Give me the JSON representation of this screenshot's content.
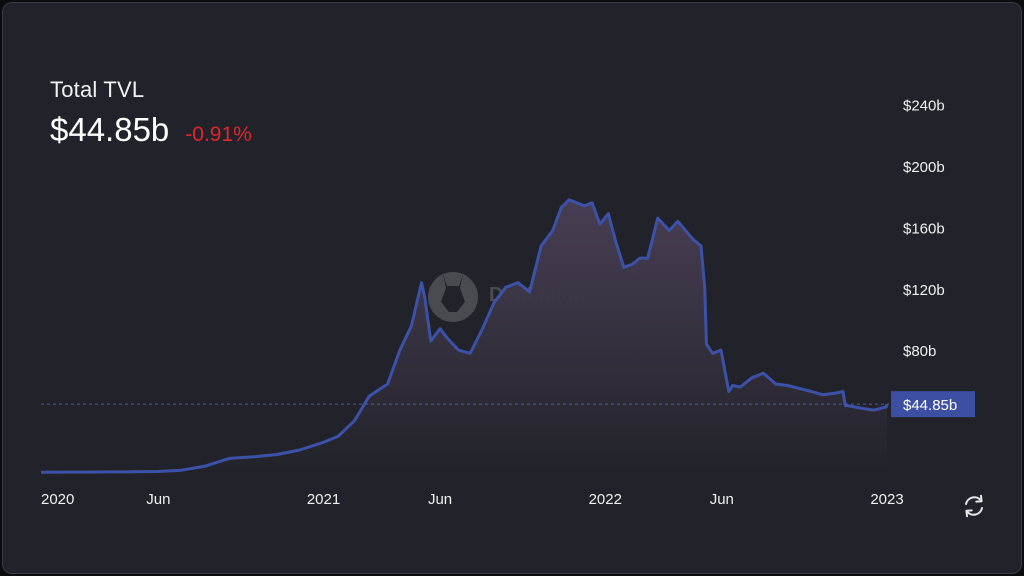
{
  "header": {
    "title": "Total TVL",
    "value": "$44.85b",
    "change": "-0.91%"
  },
  "watermark": {
    "text": "DefiLlama",
    "icon": "llama-logo-icon"
  },
  "controls": {
    "refresh_icon": "refresh-icon"
  },
  "colors": {
    "background": "#22232a",
    "line": "#3c52a8",
    "area_top": "#4a3f55",
    "change_negative": "#e0262c",
    "current_marker": "#3c4fa3"
  },
  "chart_data": {
    "type": "area",
    "series": [
      {
        "x": [
          "2020-01-01",
          "2020-02-01",
          "2020-03-01",
          "2020-04-01",
          "2020-05-01",
          "2020-06-01",
          "2020-07-01",
          "2020-08-01",
          "2020-09-01",
          "2020-10-01",
          "2020-11-01",
          "2020-12-01",
          "2021-01-01",
          "2021-01-20",
          "2021-02-10",
          "2021-03-01",
          "2021-03-25",
          "2021-04-10",
          "2021-04-25",
          "2021-05-08",
          "2021-05-12",
          "2021-05-20",
          "2021-06-01",
          "2021-06-10",
          "2021-06-25",
          "2021-07-10",
          "2021-07-25",
          "2021-08-10",
          "2021-08-25",
          "2021-09-10",
          "2021-09-25",
          "2021-10-10",
          "2021-10-25",
          "2021-11-05",
          "2021-11-15",
          "2021-11-25",
          "2021-12-05",
          "2021-12-15",
          "2021-12-25",
          "2022-01-05",
          "2022-01-15",
          "2022-01-25",
          "2022-02-05",
          "2022-02-15",
          "2022-02-25",
          "2022-03-10",
          "2022-03-25",
          "2022-04-05",
          "2022-04-15",
          "2022-04-25",
          "2022-05-05",
          "2022-05-10",
          "2022-05-12",
          "2022-05-20",
          "2022-05-31",
          "2022-06-10",
          "2022-06-15",
          "2022-06-25",
          "2022-07-10",
          "2022-07-25",
          "2022-08-10",
          "2022-08-25",
          "2022-09-10",
          "2022-09-25",
          "2022-10-10",
          "2022-10-25",
          "2022-11-05",
          "2022-11-08",
          "2022-11-10",
          "2022-11-20",
          "2022-12-01",
          "2022-12-15",
          "2022-12-31",
          "2023-01-01"
        ],
        "y": [
          0.5,
          0.6,
          0.6,
          0.7,
          0.8,
          1.0,
          1.8,
          4.5,
          9.5,
          10.5,
          12,
          15,
          20,
          24,
          34,
          50,
          58,
          80,
          96,
          124,
          115,
          86,
          94,
          88,
          80,
          78,
          93,
          111,
          121,
          124,
          118,
          148,
          158,
          173,
          178,
          176,
          174,
          176,
          162,
          169,
          150,
          134,
          136,
          140,
          140,
          166,
          158,
          164,
          158,
          152,
          148,
          120,
          84,
          78,
          80,
          53,
          57,
          56,
          62,
          65,
          58,
          57,
          55,
          53,
          51,
          52,
          53,
          44,
          44,
          43,
          42,
          41,
          43,
          44.85
        ]
      }
    ],
    "y_ticks": [
      "$80b",
      "$120b",
      "$160b",
      "$200b",
      "$240b"
    ],
    "x_ticks": [
      {
        "date": "2020-01-01",
        "label": "2020"
      },
      {
        "date": "2020-06-01",
        "label": "Jun"
      },
      {
        "date": "2021-01-01",
        "label": "2021"
      },
      {
        "date": "2021-06-01",
        "label": "Jun"
      },
      {
        "date": "2022-01-01",
        "label": "2022"
      },
      {
        "date": "2022-06-01",
        "label": "Jun"
      },
      {
        "date": "2023-01-01",
        "label": "2023"
      }
    ],
    "current_value": 44.85,
    "current_label": "$44.85b",
    "ylim": [
      0,
      240
    ],
    "xlim": [
      "2020-01-01",
      "2023-01-01"
    ],
    "grid": false,
    "legend": "none"
  }
}
